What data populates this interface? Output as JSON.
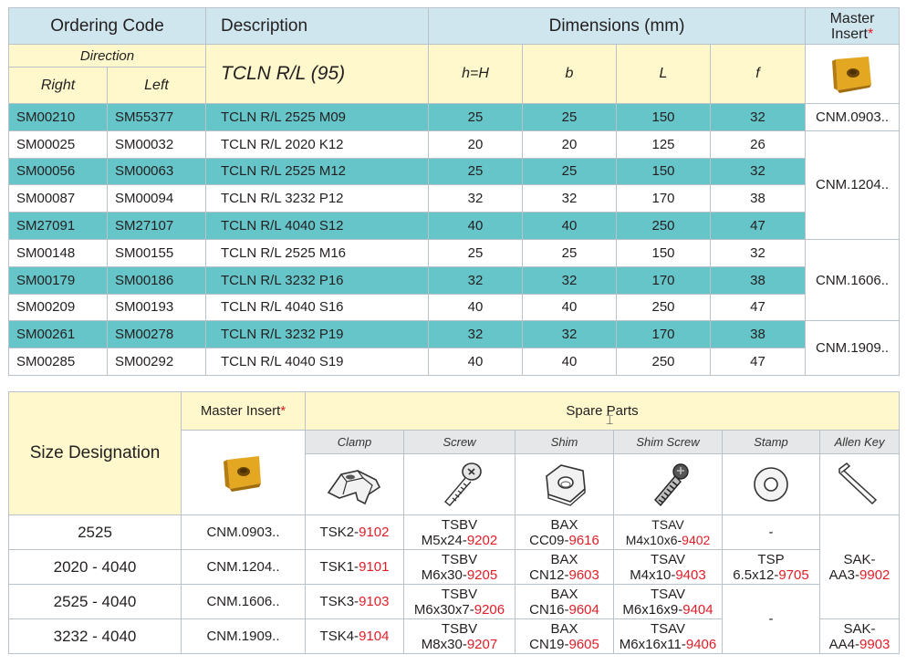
{
  "ordering": {
    "headers": {
      "ordering_code": "Ordering Code",
      "description": "Description",
      "dimensions": "Dimensions (mm)",
      "master_insert": "Master Insert",
      "star": "*",
      "direction": "Direction",
      "right": "Right",
      "left": "Left",
      "desc_sub": "TCLN R/L (95)",
      "h": "h=H",
      "b": "b",
      "L": "L",
      "f": "f"
    },
    "rows": [
      {
        "right": "SM00210",
        "left": "SM55377",
        "desc": "TCLN R/L 2525 M09",
        "h": "25",
        "b": "25",
        "L": "150",
        "f": "32"
      },
      {
        "right": "SM00025",
        "left": "SM00032",
        "desc": "TCLN R/L 2020 K12",
        "h": "20",
        "b": "20",
        "L": "125",
        "f": "26"
      },
      {
        "right": "SM00056",
        "left": "SM00063",
        "desc": "TCLN R/L 2525 M12",
        "h": "25",
        "b": "25",
        "L": "150",
        "f": "32"
      },
      {
        "right": "SM00087",
        "left": "SM00094",
        "desc": "TCLN R/L 3232 P12",
        "h": "32",
        "b": "32",
        "L": "170",
        "f": "38"
      },
      {
        "right": "SM27091",
        "left": "SM27107",
        "desc": "TCLN R/L 4040 S12",
        "h": "40",
        "b": "40",
        "L": "250",
        "f": "47"
      },
      {
        "right": "SM00148",
        "left": "SM00155",
        "desc": "TCLN R/L 2525 M16",
        "h": "25",
        "b": "25",
        "L": "150",
        "f": "32"
      },
      {
        "right": "SM00179",
        "left": "SM00186",
        "desc": "TCLN R/L 3232 P16",
        "h": "32",
        "b": "32",
        "L": "170",
        "f": "38"
      },
      {
        "right": "SM00209",
        "left": "SM00193",
        "desc": "TCLN R/L 4040 S16",
        "h": "40",
        "b": "40",
        "L": "250",
        "f": "47"
      },
      {
        "right": "SM00261",
        "left": "SM00278",
        "desc": "TCLN R/L 3232 P19",
        "h": "32",
        "b": "32",
        "L": "170",
        "f": "38"
      },
      {
        "right": "SM00285",
        "left": "SM00292",
        "desc": "TCLN R/L 4040 S19",
        "h": "40",
        "b": "40",
        "L": "250",
        "f": "47"
      }
    ],
    "inserts": [
      "CNM.0903..",
      "CNM.1204..",
      "CNM.1606..",
      "CNM.1909.."
    ]
  },
  "spare": {
    "headers": {
      "size_designation": "Size Designation",
      "master_insert": "Master Insert",
      "star": "*",
      "spare_parts": "Spare Parts",
      "clamp": "Clamp",
      "screw": "Screw",
      "shim": "Shim",
      "shim_screw": "Shim Screw",
      "stamp": "Stamp",
      "allen_key": "Allen Key"
    },
    "rows": [
      {
        "size": "2525",
        "insert": "CNM.0903..",
        "clamp": {
          "a": "TSK2-",
          "b": "9102"
        },
        "screw": {
          "l1": "TSBV",
          "a": "M5x24-",
          "b": "9202"
        },
        "shim": {
          "l1": "BAX",
          "a": "CC09-",
          "b": "9616"
        },
        "shim_screw": {
          "l1": "TSAV",
          "a": "M4x10x6-",
          "b": "9402"
        },
        "stamp": "-"
      },
      {
        "size": "2020 - 4040",
        "insert": "CNM.1204..",
        "clamp": {
          "a": "TSK1-",
          "b": "9101"
        },
        "screw": {
          "l1": "TSBV",
          "a": "M6x30-",
          "b": "9205"
        },
        "shim": {
          "l1": "BAX",
          "a": "CN12-",
          "b": "9603"
        },
        "shim_screw": {
          "l1": "TSAV",
          "a": "M4x10-",
          "b": "9403"
        },
        "stamp": {
          "l1": "TSP",
          "a": "6.5x12-",
          "b": "9705"
        }
      },
      {
        "size": "2525 - 4040",
        "insert": "CNM.1606..",
        "clamp": {
          "a": "TSK3-",
          "b": "9103"
        },
        "screw": {
          "l1": "TSBV",
          "a": "M6x30x7-",
          "b": "9206"
        },
        "shim": {
          "l1": "BAX",
          "a": "CN16-",
          "b": "9604"
        },
        "shim_screw": {
          "l1": "TSAV",
          "a": "M6x16x9-",
          "b": "9404"
        },
        "stamp": "-"
      },
      {
        "size": "3232 - 4040",
        "insert": "CNM.1909..",
        "clamp": {
          "a": "TSK4-",
          "b": "9104"
        },
        "screw": {
          "l1": "TSBV",
          "a": "M8x30-",
          "b": "9207"
        },
        "shim": {
          "l1": "BAX",
          "a": "CN19-",
          "b": "9605"
        },
        "shim_screw": {
          "l1": "TSAV",
          "a": "M6x16x11-",
          "b": "9406"
        }
      }
    ],
    "allen_keys": [
      {
        "l1": "SAK-",
        "a": "AA3-",
        "b": "9902"
      },
      {
        "l1": "SAK-",
        "a": "AA4-",
        "b": "9903"
      }
    ]
  },
  "icons": [
    "insert-icon",
    "clamp-icon",
    "screw-icon",
    "shim-icon",
    "shim-screw-icon",
    "stamp-icon",
    "allen-key-icon"
  ]
}
